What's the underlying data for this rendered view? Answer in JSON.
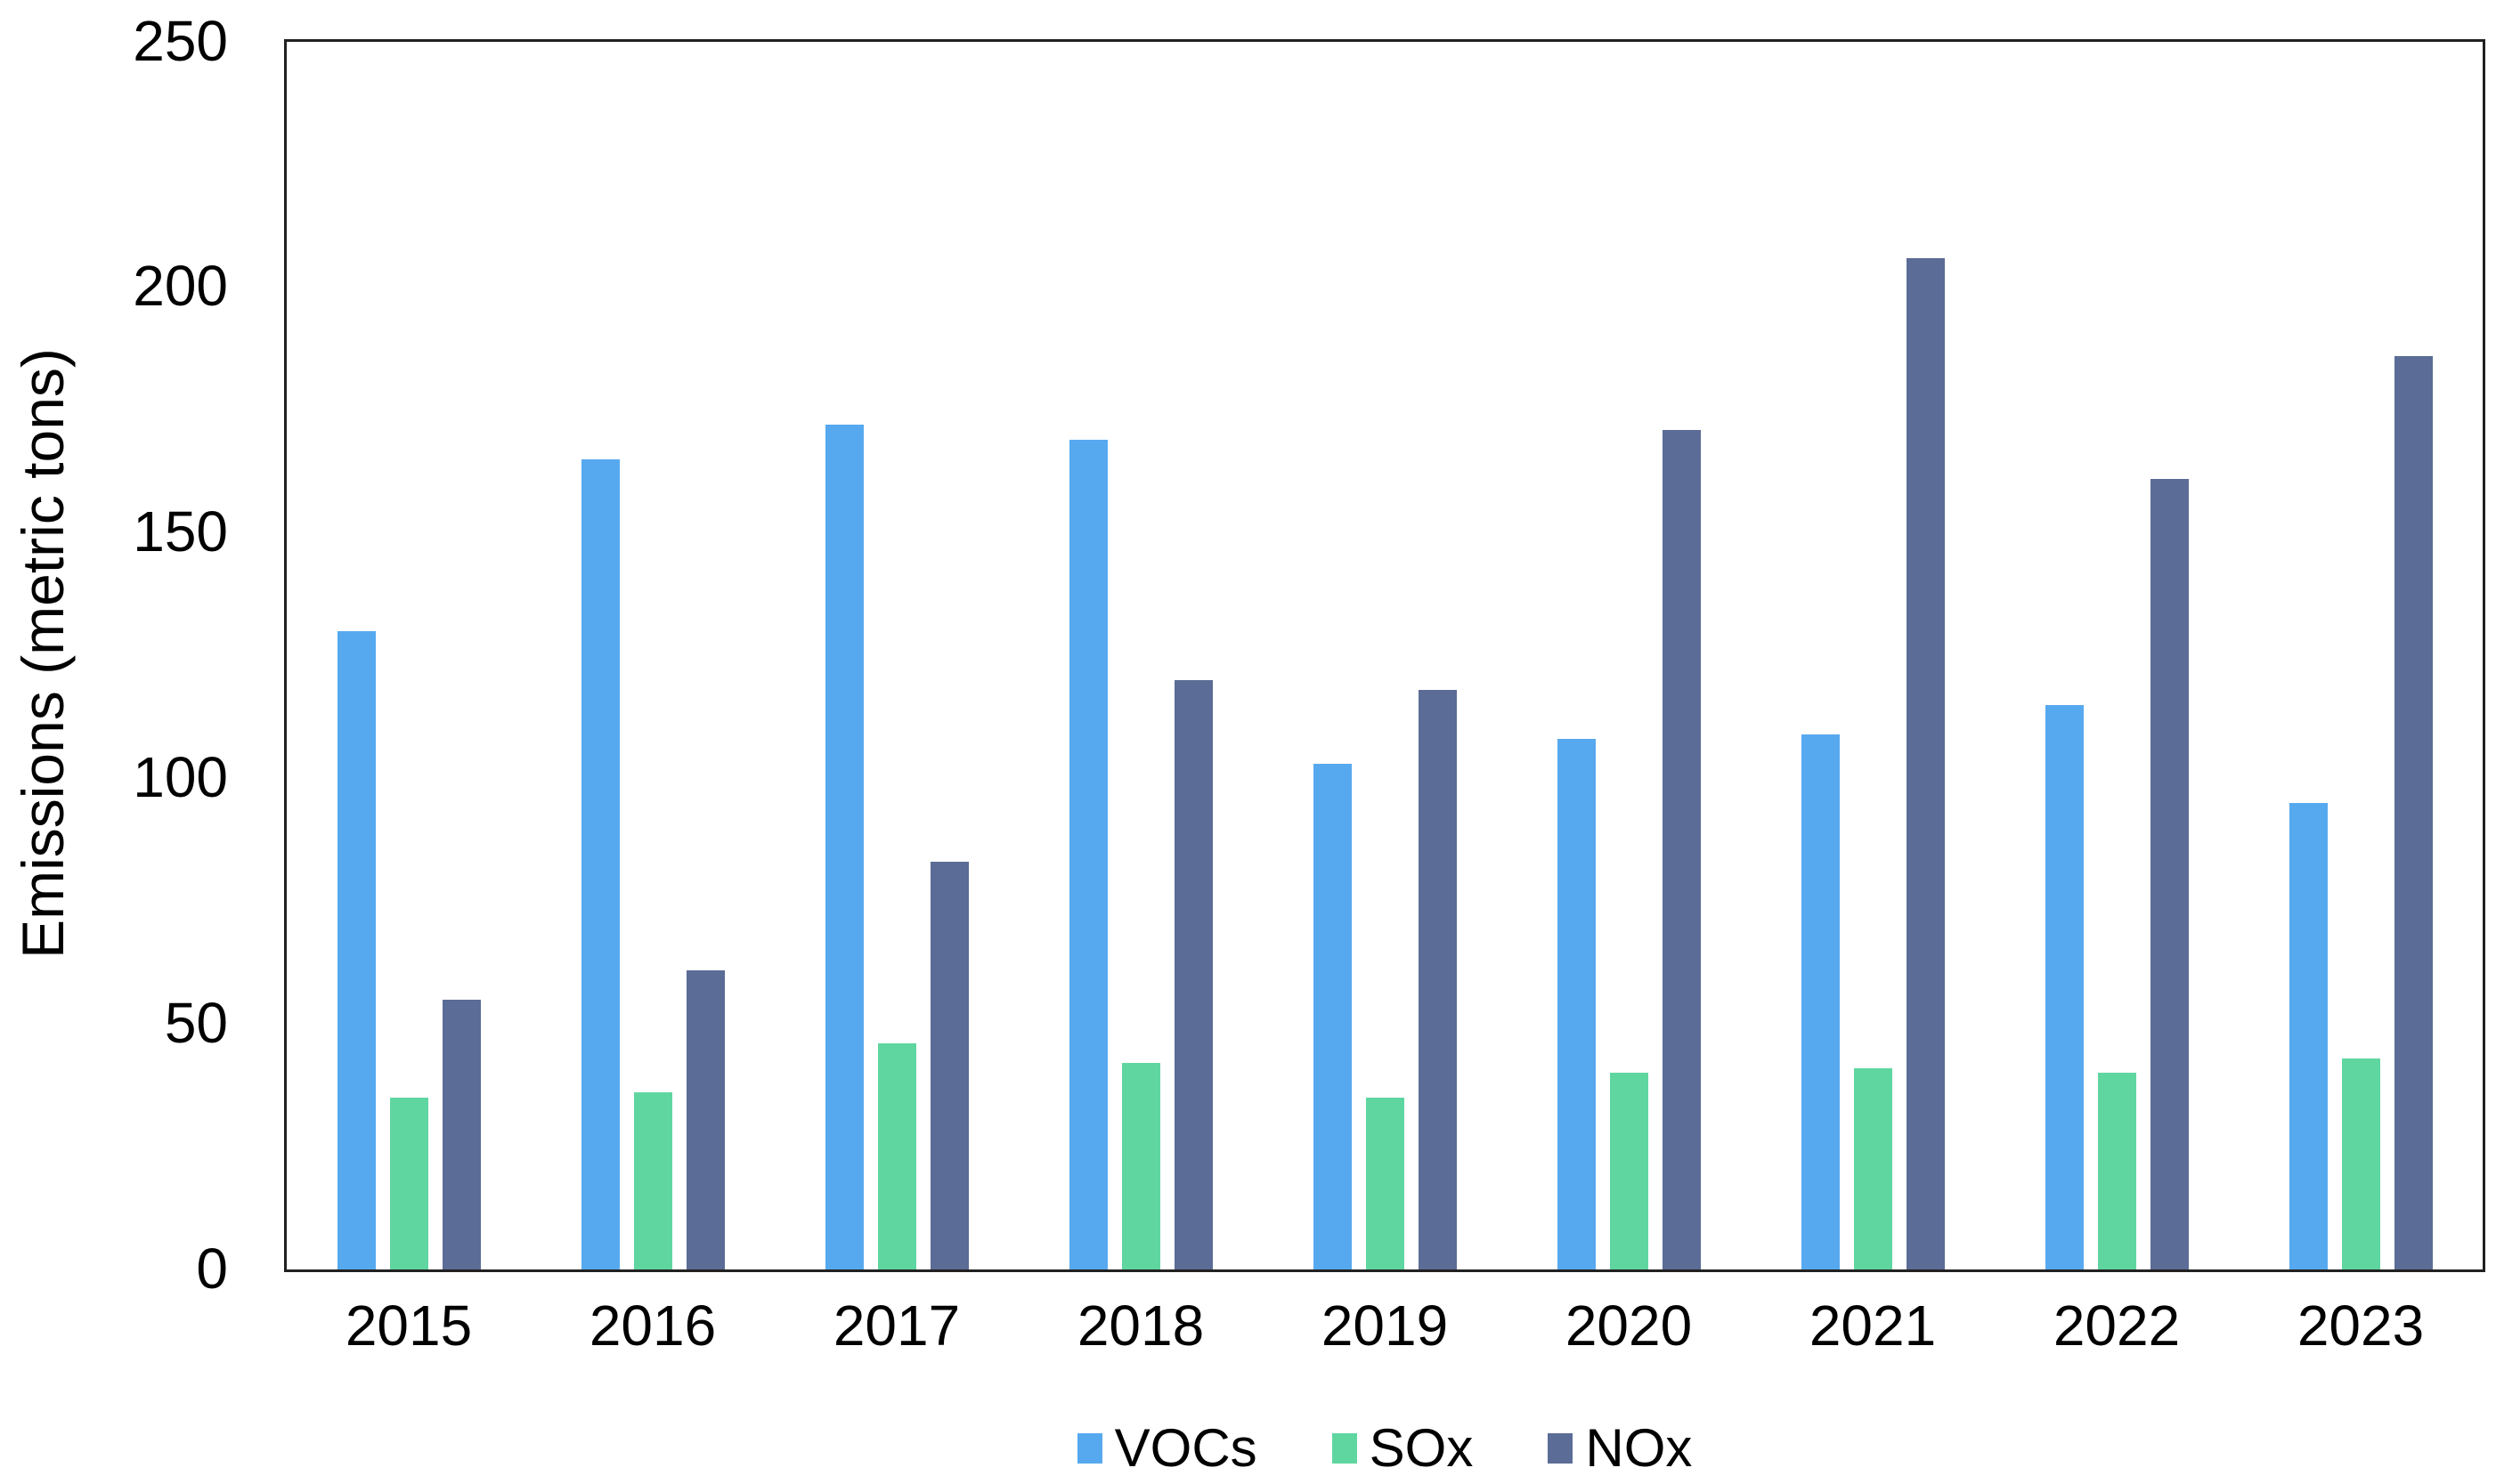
{
  "chart_data": {
    "type": "bar",
    "title": "",
    "categories": [
      "2015",
      "2016",
      "2017",
      "2018",
      "2019",
      "2020",
      "2021",
      "2022",
      "2023"
    ],
    "series": [
      {
        "name": "VOCs",
        "color": "#57A9EF",
        "values": [
          130,
          165,
          172,
          169,
          103,
          108,
          109,
          115,
          95
        ]
      },
      {
        "name": "SOx",
        "color": "#5FD6A0",
        "values": [
          35,
          36,
          46,
          42,
          35,
          40,
          41,
          40,
          43
        ]
      },
      {
        "name": "NOx",
        "color": "#5B6C96",
        "values": [
          55,
          61,
          83,
          120,
          118,
          171,
          206,
          161,
          186
        ]
      }
    ],
    "xlabel": "",
    "ylabel": "Emissions (metric tons)",
    "ylim": [
      0,
      250
    ],
    "yticks": [
      0,
      50,
      100,
      150,
      200,
      250
    ],
    "grid": false,
    "legend_position": "bottom",
    "plot_border_color": "#212121",
    "text_color": "#000000"
  }
}
